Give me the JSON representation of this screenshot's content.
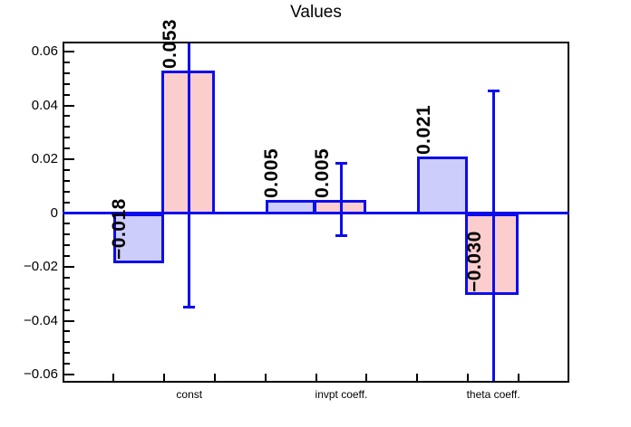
{
  "title": "Values",
  "colors": {
    "background": "#ffffff",
    "axis": "#000000",
    "text": "#000000",
    "line_blue": "#0d0deb",
    "fill_pink": "#fbcdcd",
    "fill_blue": "#cdcdfb"
  },
  "chart_data": {
    "type": "bar",
    "title": "Values",
    "categories": [
      "const",
      "invpt coeff.",
      "theta coeff."
    ],
    "series": [
      {
        "name": "blue-bars",
        "fill": "#cdcdfb",
        "values": [
          -0.018,
          0.005,
          0.021
        ],
        "labels": [
          "−0.018",
          "0.005",
          "0.021"
        ]
      },
      {
        "name": "pink-bars",
        "fill": "#fbcdcd",
        "values": [
          0.053,
          0.005,
          -0.03
        ],
        "labels": [
          "0.053",
          "0.005",
          "−0.030"
        ],
        "errors": [
          0.088,
          0.0135,
          0.0755
        ]
      }
    ],
    "bar_label_rotation_deg": 90,
    "y_axis": {
      "min": -0.0633,
      "max": 0.0637,
      "major_ticks": [
        0.06,
        0.04,
        0.02,
        0,
        -0.02,
        -0.04,
        -0.06
      ],
      "tick_labels": [
        "0.06",
        "0.04",
        "0.02",
        "0",
        "−0.02",
        "−0.04",
        "−0.06"
      ],
      "minor_step": 0.004
    },
    "x_axis": {
      "bins": 10,
      "bar_bins": [
        [
          1,
          2
        ],
        [
          4,
          5
        ],
        [
          7,
          8
        ]
      ],
      "label_bins": [
        2,
        5,
        8
      ],
      "tick_labels": [
        "const",
        "invpt coeff.",
        "theta coeff."
      ]
    },
    "grid": false,
    "legend": null,
    "zero_line": true
  }
}
